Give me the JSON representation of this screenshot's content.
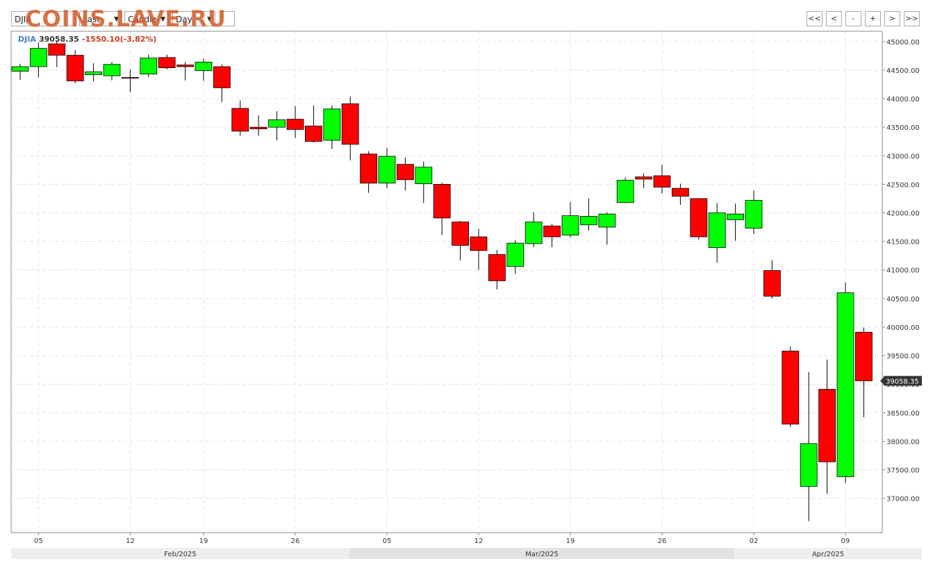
{
  "toolbar": {
    "symbol": "DJIA",
    "field": "Last",
    "style": "Candle",
    "period": "Day",
    "buttons": [
      "<<",
      "<",
      "-",
      "+",
      ">",
      ">>"
    ]
  },
  "watermark": "COINS.LAVE.RU",
  "quote": {
    "symbol": "DJIA",
    "price": "39058.35",
    "change": "-1550.10(-3.82%)"
  },
  "chart_data": {
    "type": "candlestick",
    "categories": [
      null,
      "05",
      null,
      null,
      null,
      null,
      "12",
      null,
      null,
      null,
      "19",
      null,
      null,
      null,
      null,
      "26",
      null,
      null,
      null,
      null,
      "05",
      null,
      null,
      null,
      null,
      "12",
      null,
      null,
      null,
      null,
      "19",
      null,
      null,
      null,
      null,
      "26",
      null,
      null,
      null,
      null,
      "02",
      null,
      null,
      null,
      null,
      "09",
      null
    ],
    "months": [
      "Feb/2025",
      "Mar/2025",
      "Apr/2025"
    ],
    "open": [
      44480,
      44560,
      44960,
      44760,
      44420,
      44400,
      44370,
      44430,
      44720,
      44590,
      44490,
      44560,
      43830,
      43500,
      43500,
      43640,
      43520,
      43270,
      43910,
      43030,
      42520,
      42850,
      42510,
      42500,
      41840,
      41580,
      41270,
      41060,
      41460,
      41770,
      41610,
      41790,
      41750,
      42180,
      42630,
      42650,
      42430,
      42250,
      41390,
      41880,
      41730,
      40990,
      39580,
      37210,
      38910,
      37380,
      39910
    ],
    "high": [
      44610,
      44980,
      45020,
      44850,
      44620,
      44640,
      44510,
      44770,
      44770,
      44640,
      44700,
      44600,
      43970,
      43710,
      43780,
      43870,
      43880,
      43880,
      44040,
      43080,
      43140,
      42970,
      42900,
      42530,
      41860,
      41720,
      41350,
      41520,
      42010,
      41810,
      42190,
      42250,
      42010,
      42620,
      42690,
      42840,
      42510,
      42260,
      42170,
      42160,
      42390,
      41170,
      39660,
      39210,
      39430,
      40780,
      39990
    ],
    "low": [
      44330,
      44370,
      44550,
      44270,
      44300,
      44320,
      44110,
      44380,
      44510,
      44320,
      44310,
      43940,
      43350,
      43350,
      43270,
      43310,
      43230,
      43120,
      42920,
      42350,
      42430,
      42390,
      42170,
      41610,
      41170,
      41000,
      40660,
      40930,
      41400,
      41400,
      41570,
      41690,
      41440,
      42170,
      42430,
      42340,
      42140,
      41530,
      41130,
      41510,
      41630,
      40500,
      38250,
      36600,
      37080,
      37270,
      38420
    ],
    "close": [
      44560,
      44880,
      44760,
      44310,
      44470,
      44600,
      44360,
      44710,
      44540,
      44560,
      44640,
      44190,
      43430,
      43470,
      43630,
      43460,
      43250,
      43820,
      43200,
      42520,
      42990,
      42580,
      42800,
      41910,
      41430,
      41340,
      40810,
      41470,
      41840,
      41580,
      41950,
      41940,
      41980,
      42570,
      42590,
      42450,
      42290,
      41580,
      42000,
      41980,
      42220,
      40540,
      38300,
      37960,
      37640,
      40600,
      39058.35
    ],
    "up_color": "#00ff00",
    "down_color": "#ff0000",
    "last_price": 39058.35,
    "ylim": [
      36400,
      45180
    ],
    "yticks": [
      {
        "value": 37000,
        "label": "37000.00"
      },
      {
        "value": 37500,
        "label": "37500.00"
      },
      {
        "value": 38000,
        "label": "38000.00"
      },
      {
        "value": 38500,
        "label": "38500.00"
      },
      {
        "value": 39000,
        "label": "39000.00"
      },
      {
        "value": 39500,
        "label": "39500.00"
      },
      {
        "value": 40000,
        "label": "40000.00"
      },
      {
        "value": 40500,
        "label": "40500.00"
      },
      {
        "value": 41000,
        "label": "41000.00"
      },
      {
        "value": 41500,
        "label": "41500.00"
      },
      {
        "value": 42000,
        "label": "42000.00"
      },
      {
        "value": 42500,
        "label": "42500.00"
      },
      {
        "value": 43000,
        "label": "43000.00"
      },
      {
        "value": 43500,
        "label": "43500.00"
      },
      {
        "value": 44000,
        "label": "44000.00"
      },
      {
        "value": 44500,
        "label": "44500.00"
      },
      {
        "value": 45000,
        "label": "45000.00"
      }
    ],
    "grid": true
  }
}
